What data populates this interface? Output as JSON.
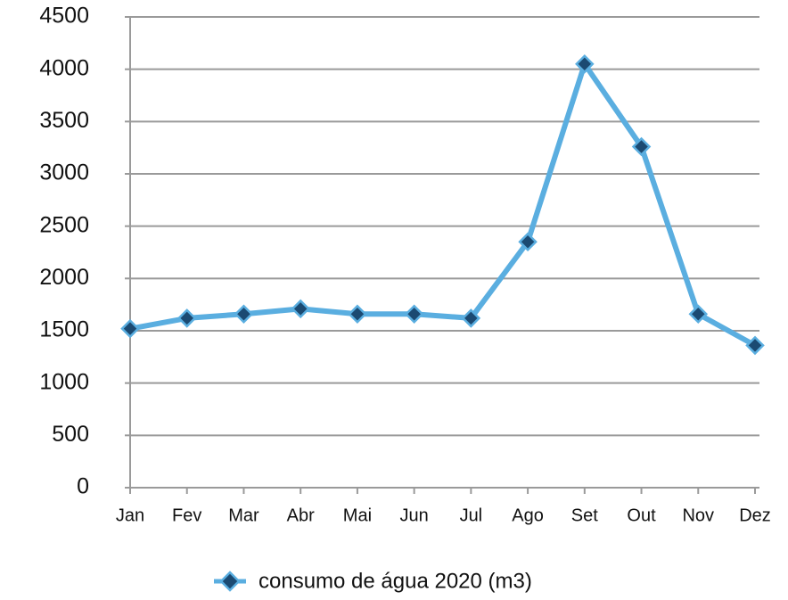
{
  "chart_data": {
    "type": "line",
    "categories": [
      "Jan",
      "Fev",
      "Mar",
      "Abr",
      "Mai",
      "Jun",
      "Jul",
      "Ago",
      "Set",
      "Out",
      "Nov",
      "Dez"
    ],
    "series": [
      {
        "name": "consumo de água 2020 (m3)",
        "color": "#5aaee0",
        "marker_color": "#1b4a72",
        "values": [
          1520,
          1620,
          1660,
          1710,
          1660,
          1660,
          1620,
          2350,
          4050,
          3260,
          1660,
          1360
        ]
      }
    ],
    "ylim": [
      0,
      4500
    ],
    "yticks": [
      0,
      500,
      1000,
      1500,
      2000,
      2500,
      3000,
      3500,
      4000,
      4500
    ],
    "grid": true,
    "legend": "bottom"
  }
}
